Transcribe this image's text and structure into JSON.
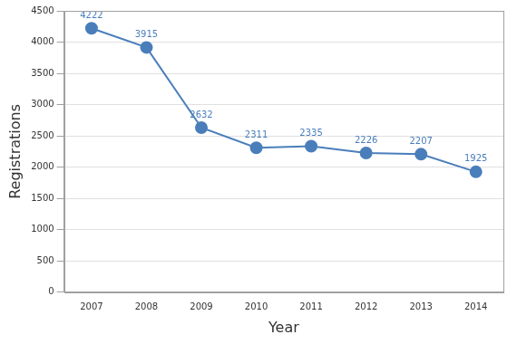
{
  "chart_data": {
    "type": "line",
    "categories": [
      "2007",
      "2008",
      "2009",
      "2010",
      "2011",
      "2012",
      "2013",
      "2014"
    ],
    "values": [
      4222,
      3915,
      2632,
      2311,
      2335,
      2226,
      2207,
      1925
    ],
    "color": "#4a7ebb",
    "x_label": "Year",
    "y_label": "Registrations",
    "ylim": [
      0,
      4500
    ],
    "yticks": [
      0,
      500,
      1000,
      1500,
      2000,
      2500,
      3000,
      3500,
      4000,
      4500
    ],
    "grid": true,
    "data_labels": true,
    "marker": "circle"
  }
}
